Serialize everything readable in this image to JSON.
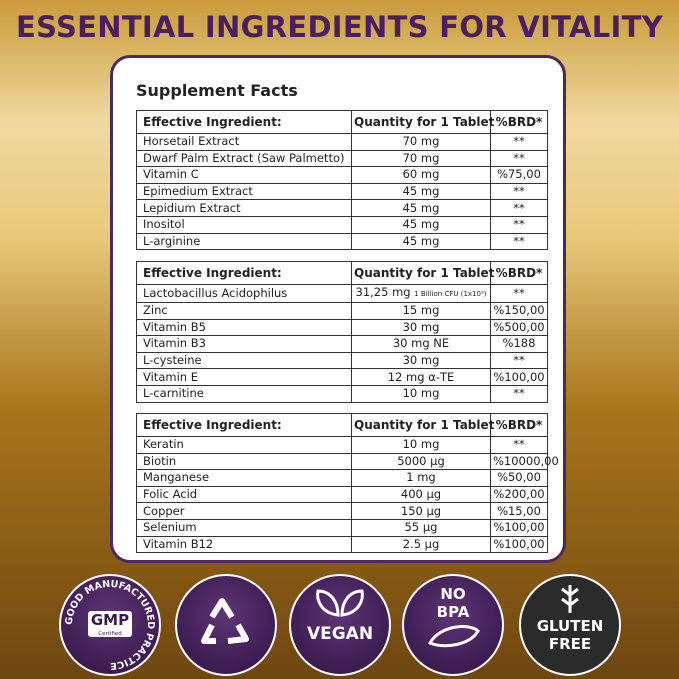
{
  "header": {
    "title": "ESSENTIAL INGREDIENTS FOR VITALITY"
  },
  "card": {
    "title": "Supplement Facts"
  },
  "tables": [
    {
      "columns": [
        "Effective Ingredient:",
        "Quantity for 1 Tablet",
        "%BRD*"
      ],
      "rows": [
        {
          "ingredient": "Horsetail Extract",
          "quantity": "70 mg",
          "brd": "**"
        },
        {
          "ingredient": "Dwarf Palm Extract (Saw Palmetto)",
          "quantity": "70 mg",
          "brd": "**"
        },
        {
          "ingredient": "Vitamin C",
          "quantity": "60 mg",
          "brd": "%75,00"
        },
        {
          "ingredient": "Epimedium Extract",
          "quantity": "45 mg",
          "brd": "**"
        },
        {
          "ingredient": "Lepidium Extract",
          "quantity": "45 mg",
          "brd": "**"
        },
        {
          "ingredient": "Inositol",
          "quantity": "45 mg",
          "brd": "**"
        },
        {
          "ingredient": "L-arginine",
          "quantity": "45 mg",
          "brd": "**"
        }
      ]
    },
    {
      "columns": [
        "Effective Ingredient:",
        "Quantity for 1 Tablet",
        "%BRD*"
      ],
      "rows": [
        {
          "ingredient": "Lactobacillus Acidophilus",
          "quantity": "31,25 mg",
          "note": "1 Billion CFU (1x10⁹)",
          "brd": "**"
        },
        {
          "ingredient": "Zinc",
          "quantity": "15 mg",
          "brd": "%150,00"
        },
        {
          "ingredient": "Vitamin B5",
          "quantity": "30 mg",
          "brd": "%500,00"
        },
        {
          "ingredient": "Vitamin B3",
          "quantity": "30 mg NE",
          "brd": "%188"
        },
        {
          "ingredient": "L-cysteine",
          "quantity": "30 mg",
          "brd": "**"
        },
        {
          "ingredient": "Vitamin E",
          "quantity": "12 mg α-TE",
          "brd": "%100,00"
        },
        {
          "ingredient": "L-carnitine",
          "quantity": "10 mg",
          "brd": "**"
        }
      ]
    },
    {
      "columns": [
        "Effective Ingredient:",
        "Quantity for 1 Tablet",
        "%BRD*"
      ],
      "rows": [
        {
          "ingredient": "Keratin",
          "quantity": "10 mg",
          "brd": "**"
        },
        {
          "ingredient": "Biotin",
          "quantity": "5000 µg",
          "brd": "%10000,00"
        },
        {
          "ingredient": "Manganese",
          "quantity": "1 mg",
          "brd": "%50,00"
        },
        {
          "ingredient": "Folic Acid",
          "quantity": "400  µg",
          "brd": "%200,00"
        },
        {
          "ingredient": "Copper",
          "quantity": "150 µg",
          "brd": "%15,00"
        },
        {
          "ingredient": "Selenium",
          "quantity": "55 µg",
          "brd": "%100,00"
        },
        {
          "ingredient": "Vitamin B12",
          "quantity": "2.5 µg",
          "brd": "%100,00"
        }
      ]
    }
  ],
  "badges": {
    "gmp": {
      "ring": "GOOD MANUFACTURED PRACTICE",
      "title": "GMP",
      "subtitle": "Certified"
    },
    "vegan": "VEGAN",
    "bpa": [
      "NO",
      "BPA"
    ],
    "gluten": [
      "GLUTEN",
      "FREE"
    ]
  }
}
